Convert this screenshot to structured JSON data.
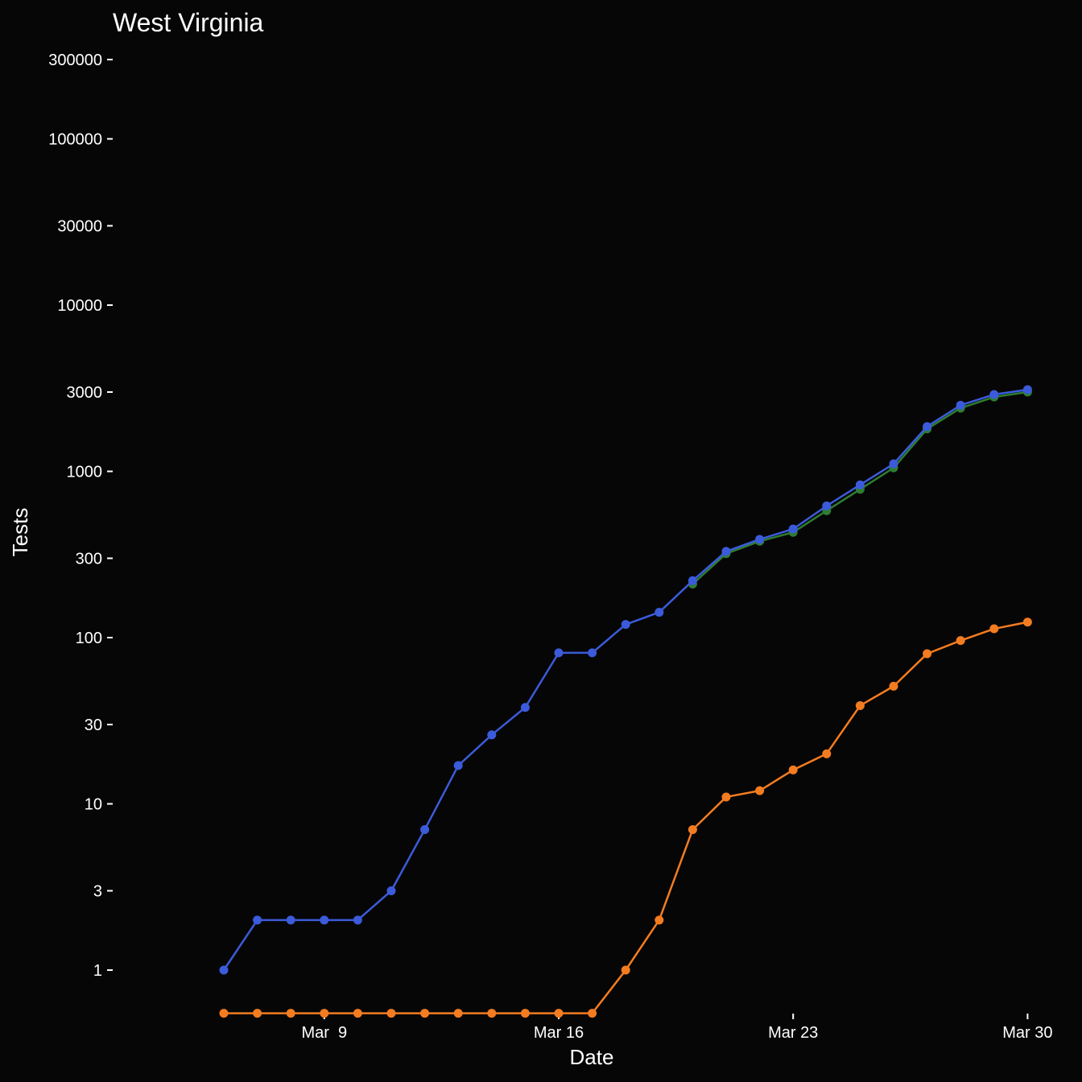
{
  "chart_data": {
    "type": "line",
    "title": "West Virginia",
    "xlabel": "Date",
    "ylabel": "Tests",
    "y_scale": "log",
    "grid": false,
    "legend": "none",
    "background": "#060606",
    "x": [
      "2020-03-06",
      "2020-03-07",
      "2020-03-08",
      "2020-03-09",
      "2020-03-10",
      "2020-03-11",
      "2020-03-12",
      "2020-03-13",
      "2020-03-14",
      "2020-03-15",
      "2020-03-16",
      "2020-03-17",
      "2020-03-18",
      "2020-03-19",
      "2020-03-20",
      "2020-03-21",
      "2020-03-22",
      "2020-03-23",
      "2020-03-24",
      "2020-03-25",
      "2020-03-26",
      "2020-03-27",
      "2020-03-28",
      "2020-03-29",
      "2020-03-30"
    ],
    "x_ticks": [
      {
        "date": "2020-03-09",
        "label": "Mar  9"
      },
      {
        "date": "2020-03-16",
        "label": "Mar 16"
      },
      {
        "date": "2020-03-23",
        "label": "Mar 23"
      },
      {
        "date": "2020-03-30",
        "label": "Mar 30"
      }
    ],
    "y_ticks": [
      {
        "value": 1,
        "label": "1"
      },
      {
        "value": 3,
        "label": "3"
      },
      {
        "value": 10,
        "label": "10"
      },
      {
        "value": 30,
        "label": "30"
      },
      {
        "value": 100,
        "label": "100"
      },
      {
        "value": 300,
        "label": "300"
      },
      {
        "value": 1000,
        "label": "1000"
      },
      {
        "value": 3000,
        "label": "3000"
      },
      {
        "value": 10000,
        "label": "10000"
      },
      {
        "value": 30000,
        "label": "30000"
      },
      {
        "value": 100000,
        "label": "100000"
      },
      {
        "value": 300000,
        "label": "300000"
      }
    ],
    "ylim": [
      0.55,
      300000
    ],
    "series": [
      {
        "color": "#2e7d32",
        "values": [
          null,
          null,
          null,
          null,
          null,
          null,
          null,
          null,
          null,
          null,
          null,
          null,
          null,
          null,
          210,
          320,
          380,
          430,
          580,
          780,
          1050,
          1800,
          2400,
          2800,
          3000
        ]
      },
      {
        "color": "#f47c20",
        "values": [
          0,
          0,
          0,
          0,
          0,
          0,
          0,
          0,
          0,
          0,
          0,
          0,
          1,
          2,
          7,
          11,
          12,
          16,
          20,
          39,
          51,
          80,
          96,
          113,
          124
        ]
      },
      {
        "color": "#3b5bdb",
        "values": [
          1,
          2,
          2,
          2,
          2,
          3,
          7,
          17,
          26,
          38,
          81,
          81,
          120,
          142,
          220,
          330,
          390,
          450,
          620,
          830,
          1110,
          1860,
          2500,
          2900,
          3100
        ]
      }
    ]
  }
}
